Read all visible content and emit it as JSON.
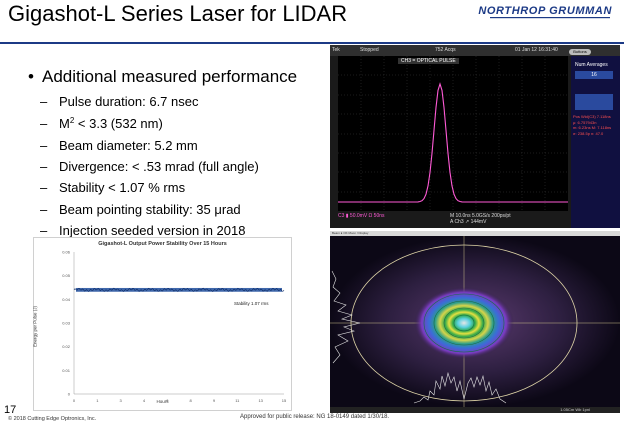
{
  "header": {
    "title": "Gigashot-L Series Laser for LIDAR",
    "logo": "NORTHROP GRUMMAN",
    "rule_color": "#1c3a86"
  },
  "content": {
    "main_bullet": "Additional measured performance",
    "sub_bullets": [
      {
        "pre": "Pulse duration: 6.7 nsec"
      },
      {
        "pre": "M",
        "sup": "2",
        "post": " < 3.3 (532 nm)"
      },
      {
        "pre": "Beam diameter:  5.2 mm"
      },
      {
        "pre": "Divergence: < .53 mrad (full angle)"
      },
      {
        "pre": "Stability < 1.07 % rms"
      },
      {
        "pre": "Beam pointing stability: 35 ",
        "special": "μ",
        "post": "rad"
      },
      {
        "pre": "Injection seeded version in 2018"
      }
    ]
  },
  "scope": {
    "top_items": [
      "Tek",
      "Stopped",
      "752 Acqs",
      "01 Jan 12 16:31:40"
    ],
    "channel_label": "CH3 = OPTICAL PULSE",
    "button": "Buttons",
    "side_title": "Num Averages",
    "side_value": "16",
    "measurements": [
      "Pos Wid(C3)  7.118ns",
      "μ: 6.757943n",
      "m: 6.23ns   M: 7.118ns",
      "σ: 238.5p   n: 47.0"
    ],
    "bottom_left": "C3 ▮   50.0mV  Ω   50ns",
    "bottom_mid": "M 10.0ns 5.0GS/s   200ps/pt",
    "bottom_right": "A  Ch3  ↗  144mV",
    "trace_color": "#ff5ad6"
  },
  "chart_data": {
    "type": "line",
    "title": "Gigashot-L Output Power Stability Over 15 Hours",
    "xlabel": "Hours",
    "ylabel": "Energy per Pulse (J)",
    "annotation": "Stability 1.07 rms",
    "x_ticks": [
      "0",
      "1",
      "3",
      "4",
      "6",
      "8",
      "9",
      "11",
      "13",
      "15"
    ],
    "y_ticks": [
      "0",
      "0.01",
      "0.02",
      "0.03",
      "0.04",
      "0.05",
      "0.06"
    ],
    "ylim": [
      0,
      0.06
    ],
    "xlim": [
      0,
      15
    ],
    "series": [
      {
        "mean": 0.044,
        "spread": 0.0008,
        "color": "#1f4e9c"
      }
    ]
  },
  "beam": {
    "top_label": "Beam  ●  OK  Moon / Display",
    "footer_label": "1.05Cm  Wb 1pnl"
  },
  "footer": {
    "page_number": "17",
    "copyright": "© 2018 Cutting Edge Optronics, Inc.",
    "approval": "Approved for public release: NG 18-0149 dated 1/30/18."
  }
}
